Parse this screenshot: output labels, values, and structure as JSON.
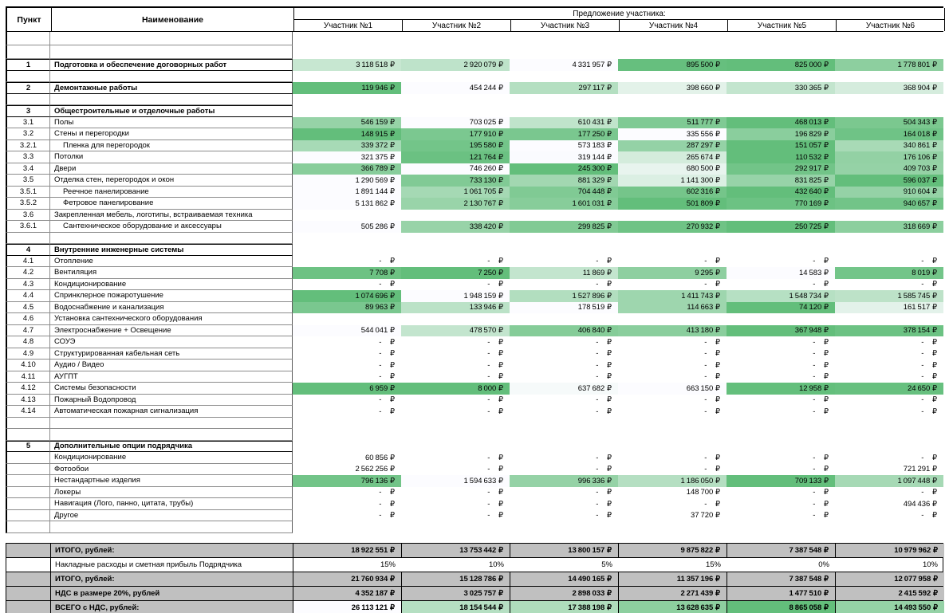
{
  "table": {
    "header": {
      "col_item": "Пункт",
      "col_name": "Наименование",
      "group_title": "Предложение участника:",
      "participants": [
        "Участник №1",
        "Участник №2",
        "Участник №3",
        "Участник №4",
        "Участник №5",
        "Участник №6"
      ]
    },
    "currency_suffix": "₽",
    "colors": {
      "scale_min": "#63BE7B",
      "scale_max": "#FCFCFF",
      "grey_fill": "#C0C0C0",
      "border_dark": "#000000",
      "border_grey": "#8C8C8C"
    },
    "rows": [
      {
        "t": "blank",
        "tall": true
      },
      {
        "t": "blank",
        "tall": true
      },
      {
        "t": "item",
        "num": "1",
        "label": "Подготовка и обеспечение договорных работ",
        "bold": true,
        "box": true,
        "scale": true,
        "values": [
          3118518,
          2920079,
          4331957,
          895500,
          825000,
          1778801
        ]
      },
      {
        "t": "blank"
      },
      {
        "t": "item",
        "num": "2",
        "label": "Демонтажные работы",
        "bold": true,
        "box": true,
        "scale": true,
        "values": [
          119946,
          454244,
          297117,
          398660,
          330365,
          368904
        ]
      },
      {
        "t": "blank"
      },
      {
        "t": "section",
        "num": "3",
        "label": "Общестроительные и отделочные работы"
      },
      {
        "t": "item",
        "num": "3.1",
        "label": "Полы",
        "scale": true,
        "values": [
          546159,
          703025,
          610431,
          511777,
          468013,
          504343
        ]
      },
      {
        "t": "item",
        "num": "3.2",
        "label": "Стены и перегородки",
        "scale": true,
        "values": [
          148915,
          177910,
          177250,
          335556,
          196829,
          164018
        ]
      },
      {
        "t": "item",
        "num": "3.2.1",
        "label": "Пленка для перегородок",
        "indent": 1,
        "scale": true,
        "values": [
          339372,
          195580,
          573183,
          287297,
          151057,
          340861
        ]
      },
      {
        "t": "item",
        "num": "3.3",
        "label": "Потолки",
        "scale": true,
        "values": [
          321375,
          121764,
          319144,
          265674,
          110532,
          176106
        ]
      },
      {
        "t": "item",
        "num": "3.4",
        "label": "Двери",
        "scale": true,
        "values": [
          366789,
          746260,
          245300,
          680500,
          292917,
          409703
        ]
      },
      {
        "t": "item",
        "num": "3.5",
        "label": "Отделка стен, перегородок и окон",
        "scale": true,
        "values": [
          1290569,
          733130,
          881329,
          1141300,
          831825,
          596037
        ]
      },
      {
        "t": "item",
        "num": "3.5.1",
        "label": "Реечное панелирование",
        "indent": 1,
        "scale": true,
        "values": [
          1891144,
          1061705,
          704448,
          602316,
          432640,
          910604
        ]
      },
      {
        "t": "item",
        "num": "3.5.2",
        "label": "Фетровое панелирование",
        "indent": 1,
        "scale": true,
        "values": [
          5131862,
          2130767,
          1601031,
          501809,
          770169,
          940657
        ]
      },
      {
        "t": "item",
        "num": "3.6",
        "label": "Закрепленная мебель, логотипы, встраиваемая техника",
        "values": null
      },
      {
        "t": "item",
        "num": "3.6.1",
        "label": "Сантехническое оборудование и аксессуары",
        "indent": 1,
        "scale": true,
        "values": [
          505286,
          338420,
          299825,
          270932,
          250725,
          318669
        ]
      },
      {
        "t": "blank"
      },
      {
        "t": "section",
        "num": "4",
        "label": "Внутренние инженерные системы"
      },
      {
        "t": "item",
        "num": "4.1",
        "label": "Отопление",
        "scale": false,
        "values": [
          null,
          null,
          null,
          null,
          null,
          null
        ]
      },
      {
        "t": "item",
        "num": "4.2",
        "label": "Вентиляция",
        "scale": true,
        "values": [
          7708,
          7250,
          11869,
          9295,
          14583,
          8019
        ]
      },
      {
        "t": "item",
        "num": "4.3",
        "label": "Кондиционирование",
        "scale": false,
        "values": [
          null,
          null,
          null,
          null,
          null,
          null
        ]
      },
      {
        "t": "item",
        "num": "4.4",
        "label": "Спринклерное пожаротушение",
        "scale": true,
        "values": [
          1074696,
          1948159,
          1527896,
          1411743,
          1548734,
          1585745
        ]
      },
      {
        "t": "item",
        "num": "4.5",
        "label": "Водоснабжение и канализация",
        "scale": true,
        "values": [
          89963,
          133946,
          178519,
          114663,
          74120,
          161517
        ]
      },
      {
        "t": "item",
        "num": "4.6",
        "label": "Установка сантехнического оборудования",
        "values": null
      },
      {
        "t": "item",
        "num": "4.7",
        "label": "Электроснабжение + Освещение",
        "scale": true,
        "values": [
          544041,
          478570,
          406840,
          413180,
          367948,
          378154
        ]
      },
      {
        "t": "item",
        "num": "4.8",
        "label": "СОУЭ",
        "scale": false,
        "values": [
          null,
          null,
          null,
          null,
          null,
          null
        ]
      },
      {
        "t": "item",
        "num": "4.9",
        "label": "Структурированная кабельная сеть",
        "scale": false,
        "values": [
          null,
          null,
          null,
          null,
          null,
          null
        ]
      },
      {
        "t": "item",
        "num": "4.10",
        "label": "Аудио / Видео",
        "scale": false,
        "values": [
          null,
          null,
          null,
          null,
          null,
          null
        ]
      },
      {
        "t": "item",
        "num": "4.11",
        "label": "АУГПТ",
        "scale": false,
        "values": [
          null,
          null,
          null,
          null,
          null,
          null
        ]
      },
      {
        "t": "item",
        "num": "4.12",
        "label": "Системы безопасности",
        "scale": true,
        "values": [
          6959,
          8000,
          637682,
          663150,
          12958,
          24650
        ]
      },
      {
        "t": "item",
        "num": "4.13",
        "label": "Пожарный Водопровод",
        "scale": false,
        "values": [
          null,
          null,
          null,
          null,
          null,
          null
        ]
      },
      {
        "t": "item",
        "num": "4.14",
        "label": "Автоматическая пожарная сигнализация",
        "scale": false,
        "values": [
          null,
          null,
          null,
          null,
          null,
          null
        ]
      },
      {
        "t": "blank"
      },
      {
        "t": "blank"
      },
      {
        "t": "section",
        "num": "5",
        "label": "Дополнительные опции подрядчика"
      },
      {
        "t": "item",
        "num": "",
        "label": "Кондиционирование",
        "scale": false,
        "values": [
          60856,
          null,
          null,
          null,
          null,
          null
        ]
      },
      {
        "t": "item",
        "num": "",
        "label": "Фотообои",
        "scale": false,
        "values": [
          2562256,
          null,
          null,
          null,
          null,
          721291
        ]
      },
      {
        "t": "item",
        "num": "",
        "label": "Нестандартные изделия",
        "scale": true,
        "values": [
          796136,
          1594633,
          996336,
          1186050,
          709133,
          1097448
        ]
      },
      {
        "t": "item",
        "num": "",
        "label": "Локеры",
        "scale": false,
        "values": [
          null,
          null,
          null,
          148700,
          null,
          null
        ]
      },
      {
        "t": "item",
        "num": "",
        "label": "Навигация (Лого, панно, цитата, трубы)",
        "scale": false,
        "values": [
          null,
          null,
          null,
          null,
          null,
          494436
        ]
      },
      {
        "t": "item",
        "num": "",
        "label": "Другое",
        "scale": false,
        "values": [
          null,
          null,
          null,
          37720,
          null,
          null
        ]
      },
      {
        "t": "blank"
      },
      {
        "t": "gap"
      }
    ],
    "totals": [
      {
        "label": "ИТОГО, рублей:",
        "style": "grey",
        "bold": true,
        "format": "currency",
        "values": [
          18922551,
          13753442,
          13800157,
          9875822,
          7387548,
          10979962
        ]
      },
      {
        "label": "Накладные расходы и сметная прибыль Подрядчика",
        "style": "white",
        "bold": false,
        "format": "percent",
        "values": [
          15,
          10,
          5,
          15,
          0,
          10
        ]
      },
      {
        "label": "ИТОГО, рублей:",
        "style": "grey",
        "bold": true,
        "format": "currency",
        "values": [
          21760934,
          15128786,
          14490165,
          11357196,
          7387548,
          12077958
        ]
      },
      {
        "label": "НДС в размере 20%, рублей",
        "style": "grey",
        "bold": true,
        "format": "currency",
        "values": [
          4352187,
          3025757,
          2898033,
          2271439,
          1477510,
          2415592
        ]
      },
      {
        "label": "ВСЕГО с НДС, рублей:",
        "style": "scale",
        "bold": true,
        "format": "currency",
        "values": [
          26113121,
          18154544,
          17388198,
          13628635,
          8865058,
          14493550
        ]
      }
    ]
  }
}
